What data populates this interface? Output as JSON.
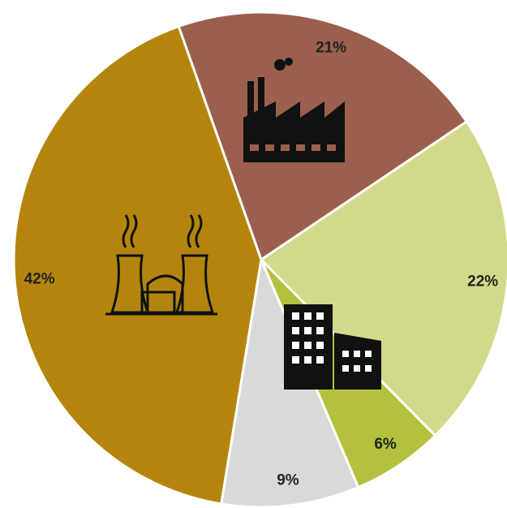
{
  "chart_data": {
    "type": "pie",
    "categories": [
      null,
      null,
      null,
      null,
      null
    ],
    "values": [
      21,
      22,
      6,
      9,
      42
    ],
    "value_labels": [
      "21%",
      "22%",
      "6%",
      "9%",
      "42%"
    ],
    "colors": [
      "#9b5f4d",
      "#d3d98a",
      "#b3c13f",
      "#d9d9d9",
      "#b4850d"
    ],
    "start_angle": -19.5
  }
}
